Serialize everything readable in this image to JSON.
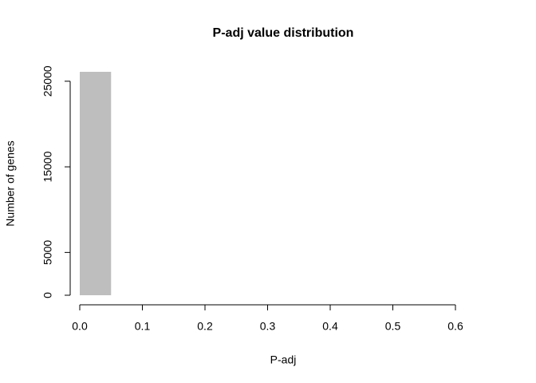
{
  "chart_data": {
    "type": "histogram",
    "title": "P-adj value distribution",
    "x_label": "P-adj",
    "y_label": "Number of genes",
    "bins": [
      0,
      0.05,
      0.1,
      0.15,
      0.2,
      0.25,
      0.3,
      0.35,
      0.4,
      0.45,
      0.5,
      0.55,
      0.6
    ],
    "values": [
      26100,
      0,
      0,
      0,
      0,
      0,
      0,
      0,
      0,
      0,
      0,
      0
    ],
    "color": "#bebebe",
    "xlim": [
      0,
      0.6
    ],
    "xticks": [
      {
        "value": 0,
        "label": "0.0"
      },
      0.1,
      0.2,
      0.3,
      0.4,
      0.5,
      0.6
    ],
    "ylim": [
      0,
      26100
    ],
    "yticks": [
      0,
      5000,
      15000,
      25000
    ]
  }
}
